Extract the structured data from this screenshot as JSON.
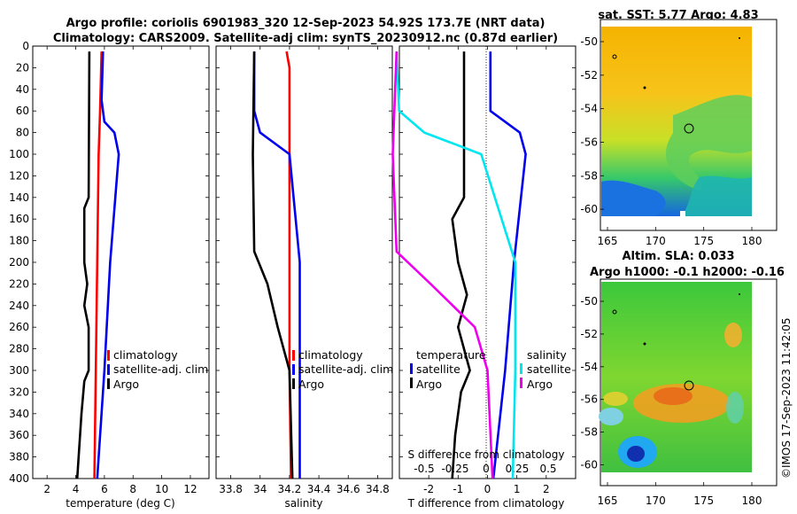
{
  "header": {
    "title_line1": "Argo profile: coriolis 6901983_320 12-Sep-2023 54.92S 173.7E (NRT data)",
    "title_line2": "Climatology: CARS2009. Satellite-adj clim: synTS_20230912.nc (0.87d earlier)"
  },
  "colors": {
    "climatology": "#ff0000",
    "satellite": "#0000ee",
    "argo": "#000000",
    "sat_diff": "#00e6f0",
    "sal_diff": "#ee00ee"
  },
  "chart_data": [
    {
      "type": "line",
      "name": "temperature-profile",
      "xlabel": "temperature (deg C)",
      "ylabel": "",
      "xlim": [
        1,
        13.3
      ],
      "ylim": [
        400,
        0
      ],
      "xticks": [
        "2",
        "4",
        "6",
        "8",
        "10",
        "12"
      ],
      "xtick_values": [
        2,
        4,
        6,
        8,
        10,
        12
      ],
      "yticks": [
        "0",
        "20",
        "40",
        "60",
        "80",
        "100",
        "120",
        "140",
        "160",
        "180",
        "200",
        "220",
        "240",
        "260",
        "280",
        "300",
        "320",
        "340",
        "360",
        "380",
        "400"
      ],
      "legend": [
        "climatology",
        "satellite-adj. clim",
        "Argo"
      ],
      "series": [
        {
          "name": "climatology",
          "depth": [
            5,
            60,
            100,
            150,
            200,
            300,
            400
          ],
          "values": [
            5.8,
            5.7,
            5.6,
            5.55,
            5.5,
            5.4,
            5.3
          ]
        },
        {
          "name": "satellite-adj. clim",
          "depth": [
            5,
            50,
            70,
            80,
            100,
            200,
            300,
            400
          ],
          "values": [
            5.9,
            5.8,
            6.0,
            6.7,
            7.0,
            6.4,
            6.0,
            5.5
          ]
        },
        {
          "name": "Argo",
          "depth": [
            5,
            140,
            150,
            200,
            220,
            240,
            260,
            300,
            310,
            340,
            380,
            400
          ],
          "values": [
            4.95,
            4.9,
            4.6,
            4.6,
            4.8,
            4.6,
            4.9,
            4.9,
            4.6,
            4.4,
            4.2,
            4.1
          ]
        }
      ]
    },
    {
      "type": "line",
      "name": "salinity-profile",
      "xlabel": "salinity",
      "xlim": [
        33.7,
        34.9
      ],
      "ylim": [
        400,
        0
      ],
      "xticks": [
        "33.8",
        "34",
        "34.2",
        "34.4",
        "34.6",
        "34.8"
      ],
      "xtick_values": [
        33.8,
        34,
        34.2,
        34.4,
        34.6,
        34.8
      ],
      "legend": [
        "climatology",
        "satellite-adj. clim",
        "Argo"
      ],
      "series": [
        {
          "name": "climatology",
          "depth": [
            5,
            20,
            100,
            200,
            300,
            400
          ],
          "values": [
            34.18,
            34.2,
            34.2,
            34.2,
            34.2,
            34.21
          ]
        },
        {
          "name": "satellite-adj. clim",
          "depth": [
            5,
            60,
            80,
            100,
            200,
            300,
            400
          ],
          "values": [
            33.96,
            33.96,
            34.0,
            34.2,
            34.27,
            34.27,
            34.27
          ]
        },
        {
          "name": "Argo",
          "depth": [
            5,
            100,
            190,
            220,
            260,
            300,
            400
          ],
          "values": [
            33.96,
            33.95,
            33.96,
            34.05,
            34.12,
            34.2,
            34.22
          ]
        }
      ]
    },
    {
      "type": "line",
      "name": "difference-profile",
      "xlabel": "T difference from climatology",
      "xlabel_top": "S difference from climatology",
      "xlim": [
        -3,
        3
      ],
      "ylim": [
        400,
        0
      ],
      "xticks": [
        "-2",
        "-1",
        "0",
        "1",
        "2"
      ],
      "xtick_values": [
        -2,
        -1,
        0,
        1,
        2
      ],
      "xticks_top": [
        "-0.5",
        "-0.25",
        "0",
        "0.25",
        "0.5"
      ],
      "legend_left_title": "temperature",
      "legend_right_title": "salinity",
      "legend": [
        "satellite",
        "Argo",
        "satellite",
        "Argo"
      ],
      "series": [
        {
          "name": "temperature satellite",
          "depth": [
            5,
            60,
            80,
            100,
            200,
            300,
            400
          ],
          "values": [
            0.1,
            0.1,
            1.1,
            1.3,
            0.9,
            0.6,
            0.2
          ]
        },
        {
          "name": "temperature Argo",
          "depth": [
            5,
            140,
            160,
            200,
            230,
            260,
            300,
            320,
            360,
            400
          ],
          "values": [
            -0.8,
            -0.8,
            -1.2,
            -1.0,
            -0.7,
            -1.0,
            -0.6,
            -0.9,
            -1.1,
            -1.2
          ]
        },
        {
          "name": "salinity satellite",
          "depth": [
            5,
            60,
            80,
            100,
            200,
            300,
            400
          ],
          "values": [
            -0.72,
            -0.7,
            -0.5,
            -0.05,
            0.22,
            0.22,
            0.2
          ]
        },
        {
          "name": "salinity Argo",
          "depth": [
            5,
            100,
            190,
            220,
            260,
            300,
            400
          ],
          "values": [
            -0.72,
            -0.75,
            -0.72,
            -0.45,
            -0.1,
            0.0,
            0.04
          ]
        }
      ]
    },
    {
      "type": "heatmap",
      "name": "sst-map",
      "title": "sat. SST: 5.77 Argo: 4.83",
      "xticks": [
        "165",
        "170",
        "175",
        "180"
      ],
      "yticks": [
        "-50",
        "-52",
        "-54",
        "-56",
        "-58",
        "-60"
      ],
      "marker_lon": 173.7,
      "marker_lat": -54.92
    },
    {
      "type": "heatmap",
      "name": "sla-map",
      "title_line1": "Altim. SLA: 0.033",
      "title_line2": "Argo h1000: -0.1 h2000: -0.16",
      "xticks": [
        "165",
        "170",
        "175",
        "180"
      ],
      "yticks": [
        "-50",
        "-52",
        "-54",
        "-56",
        "-58",
        "-60"
      ],
      "marker_lon": 173.7,
      "marker_lat": -54.92
    }
  ],
  "footer": {
    "credit": "©IMOS 17-Sep-2023 11:42:05"
  }
}
